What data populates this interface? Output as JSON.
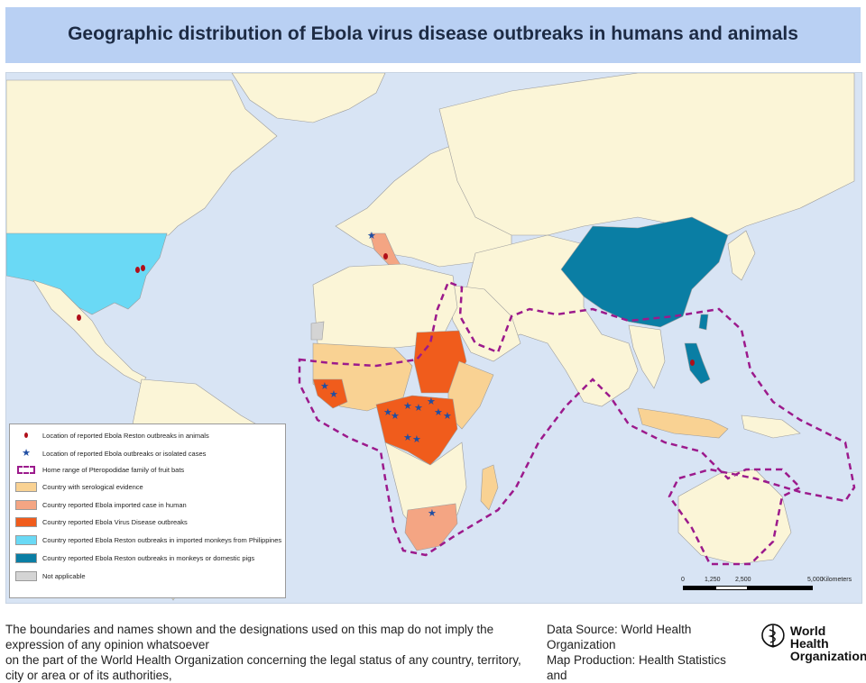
{
  "title": "Geographic distribution of Ebola virus disease outbreaks in humans and animals",
  "colors": {
    "ocean": "#d8e4f4",
    "land": "#fbf5d7",
    "serological": "#f9d293",
    "imported_human": "#f4a583",
    "evd_outbreak": "#f05c1c",
    "reston_imported_monkeys": "#6ad9f5",
    "reston_monkeys_pigs": "#0a7ea4",
    "not_applicable": "#d4d4d4",
    "bat_range": "#9c1a8c",
    "animal_marker": "#b00f1a",
    "outbreak_marker": "#1f4ea3"
  },
  "legend": {
    "items": [
      {
        "label": "Location of reported Ebola Reston outbreaks in animals",
        "symbol": "dot"
      },
      {
        "label": "Location of reported Ebola outbreaks or isolated cases",
        "symbol": "star"
      },
      {
        "label": "Home range of Pteropodidae family of fruit bats",
        "symbol": "dashed-box"
      },
      {
        "label": "Country with serological evidence",
        "symbol": "swatch",
        "color": "#f9d293"
      },
      {
        "label": "Country reported Ebola imported case in human",
        "symbol": "swatch",
        "color": "#f4a583"
      },
      {
        "label": "Country reported Ebola Virus Disease outbreaks",
        "symbol": "swatch",
        "color": "#f05c1c"
      },
      {
        "label": "Country reported Ebola Reston outbreaks in imported monkeys from Philippines",
        "symbol": "swatch",
        "color": "#6ad9f5"
      },
      {
        "label": "Country reported Ebola Reston outbreaks in monkeys or domestic pigs",
        "symbol": "swatch",
        "color": "#0a7ea4"
      },
      {
        "label": "Not applicable",
        "symbol": "swatch",
        "color": "#d4d4d4"
      }
    ]
  },
  "scale_bar": {
    "ticks": [
      "0",
      "1,250",
      "2,500",
      "5,000"
    ],
    "unit": "Kilometers"
  },
  "footer": {
    "disclaimer_line1": "The boundaries and names shown and the designations used on this map do not imply the expression of any opinion whatsoever",
    "disclaimer_line2": "on the part of the World Health Organization concerning the legal status of any country, territory, city or area or of its authorities,",
    "source_line1": "Data Source: World Health Organization",
    "source_line2": "Map Production: Health Statistics and",
    "org_line1": "World Health",
    "org_line2": "Organization"
  }
}
